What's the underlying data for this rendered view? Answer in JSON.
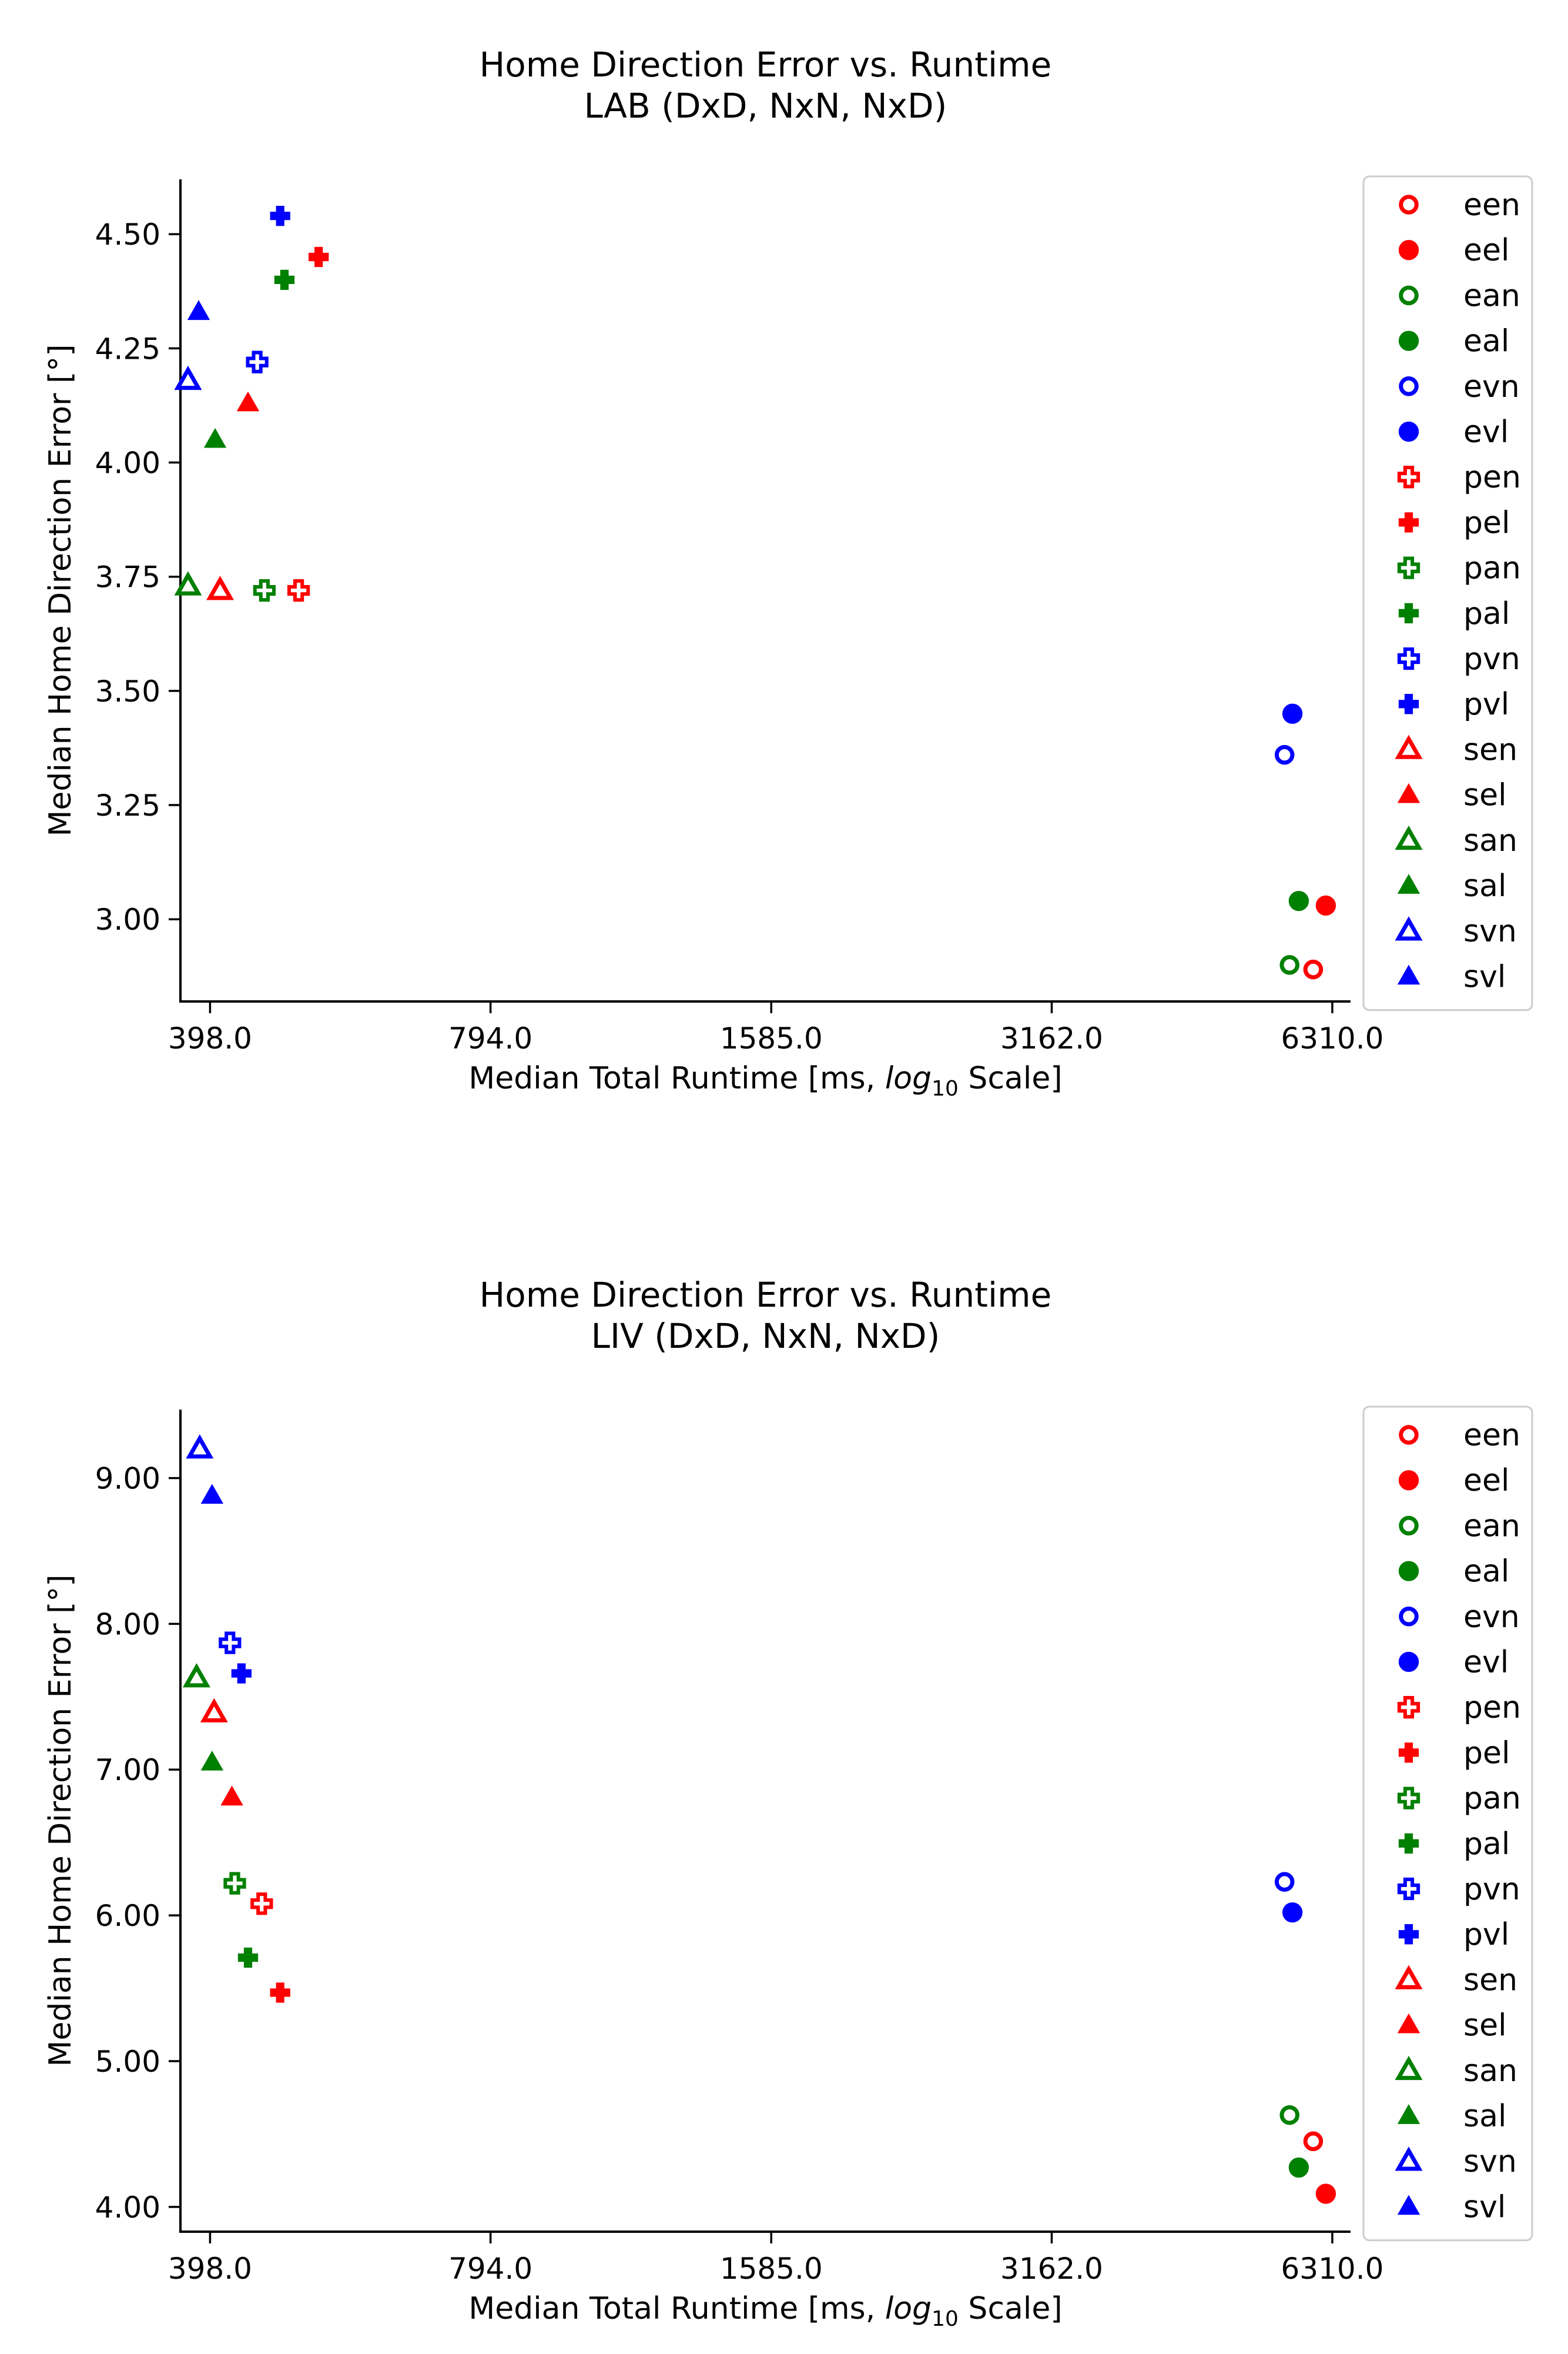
{
  "chart_data": [
    {
      "type": "scatter",
      "title": "Home Direction Error vs. Runtime",
      "subtitle": "LAB (DxD, NxN, NxD)",
      "xlabel": "Median Total Runtime [ms, log10 Scale]",
      "xlabel_parts": [
        "Median Total Runtime [ms, ",
        "log",
        "10",
        " Scale]"
      ],
      "ylabel": "Median Home Direction Error [°]",
      "xscale": "log10",
      "xlim": [
        370,
        6600
      ],
      "ylim": [
        2.82,
        4.62
      ],
      "xticks": [
        398,
        794,
        1585,
        3162,
        6310
      ],
      "xtick_labels": [
        "398.0",
        "794.0",
        "1585.0",
        "3162.0",
        "6310.0"
      ],
      "yticks": [
        3.0,
        3.25,
        3.5,
        3.75,
        4.0,
        4.25,
        4.5
      ],
      "ytick_labels": [
        "3.00",
        "3.25",
        "3.50",
        "3.75",
        "4.00",
        "4.25",
        "4.50"
      ],
      "grid": false,
      "legend_position": "right",
      "series": [
        {
          "name": "een",
          "color": "#ff0000",
          "marker": "circle",
          "filled": false,
          "x": 6020,
          "y": 2.89
        },
        {
          "name": "eel",
          "color": "#ff0000",
          "marker": "circle",
          "filled": true,
          "x": 6210,
          "y": 3.03
        },
        {
          "name": "ean",
          "color": "#008000",
          "marker": "circle",
          "filled": false,
          "x": 5680,
          "y": 2.9
        },
        {
          "name": "eal",
          "color": "#008000",
          "marker": "circle",
          "filled": true,
          "x": 5810,
          "y": 3.04
        },
        {
          "name": "evn",
          "color": "#0000ff",
          "marker": "circle",
          "filled": false,
          "x": 5610,
          "y": 3.36
        },
        {
          "name": "evl",
          "color": "#0000ff",
          "marker": "circle",
          "filled": true,
          "x": 5720,
          "y": 3.45
        },
        {
          "name": "pen",
          "color": "#ff0000",
          "marker": "plus",
          "filled": false,
          "x": 495,
          "y": 3.72
        },
        {
          "name": "pel",
          "color": "#ff0000",
          "marker": "plus",
          "filled": true,
          "x": 520,
          "y": 4.45
        },
        {
          "name": "pan",
          "color": "#008000",
          "marker": "plus",
          "filled": false,
          "x": 455,
          "y": 3.72
        },
        {
          "name": "pal",
          "color": "#008000",
          "marker": "plus",
          "filled": true,
          "x": 478,
          "y": 4.4
        },
        {
          "name": "pvn",
          "color": "#0000ff",
          "marker": "plus",
          "filled": false,
          "x": 447,
          "y": 4.22
        },
        {
          "name": "pvl",
          "color": "#0000ff",
          "marker": "plus",
          "filled": true,
          "x": 473,
          "y": 4.54
        },
        {
          "name": "sen",
          "color": "#ff0000",
          "marker": "triangle",
          "filled": false,
          "x": 408,
          "y": 3.72
        },
        {
          "name": "sel",
          "color": "#ff0000",
          "marker": "triangle",
          "filled": true,
          "x": 437,
          "y": 4.13
        },
        {
          "name": "san",
          "color": "#008000",
          "marker": "triangle",
          "filled": false,
          "x": 377,
          "y": 3.73
        },
        {
          "name": "sal",
          "color": "#008000",
          "marker": "triangle",
          "filled": true,
          "x": 403,
          "y": 4.05
        },
        {
          "name": "svn",
          "color": "#0000ff",
          "marker": "triangle",
          "filled": false,
          "x": 377,
          "y": 4.18
        },
        {
          "name": "svl",
          "color": "#0000ff",
          "marker": "triangle",
          "filled": true,
          "x": 387,
          "y": 4.33
        }
      ]
    },
    {
      "type": "scatter",
      "title": "Home Direction Error vs. Runtime",
      "subtitle": "LIV (DxD, NxN, NxD)",
      "xlabel": "Median Total Runtime [ms, log10 Scale]",
      "xlabel_parts": [
        "Median Total Runtime [ms, ",
        "log",
        "10",
        " Scale]"
      ],
      "ylabel": "Median Home Direction Error [°]",
      "xscale": "log10",
      "xlim": [
        370,
        6600
      ],
      "ylim": [
        3.83,
        9.47
      ],
      "xticks": [
        398,
        794,
        1585,
        3162,
        6310
      ],
      "xtick_labels": [
        "398.0",
        "794.0",
        "1585.0",
        "3162.0",
        "6310.0"
      ],
      "yticks": [
        4.0,
        5.0,
        6.0,
        7.0,
        8.0,
        9.0
      ],
      "ytick_labels": [
        "4.00",
        "5.00",
        "6.00",
        "7.00",
        "8.00",
        "9.00"
      ],
      "grid": false,
      "legend_position": "right",
      "series": [
        {
          "name": "een",
          "color": "#ff0000",
          "marker": "circle",
          "filled": false,
          "x": 6020,
          "y": 4.45
        },
        {
          "name": "eel",
          "color": "#ff0000",
          "marker": "circle",
          "filled": true,
          "x": 6210,
          "y": 4.09
        },
        {
          "name": "ean",
          "color": "#008000",
          "marker": "circle",
          "filled": false,
          "x": 5680,
          "y": 4.63
        },
        {
          "name": "eal",
          "color": "#008000",
          "marker": "circle",
          "filled": true,
          "x": 5810,
          "y": 4.27
        },
        {
          "name": "evn",
          "color": "#0000ff",
          "marker": "circle",
          "filled": false,
          "x": 5610,
          "y": 6.23
        },
        {
          "name": "evl",
          "color": "#0000ff",
          "marker": "circle",
          "filled": true,
          "x": 5720,
          "y": 6.02
        },
        {
          "name": "pen",
          "color": "#ff0000",
          "marker": "plus",
          "filled": false,
          "x": 452,
          "y": 6.08
        },
        {
          "name": "pel",
          "color": "#ff0000",
          "marker": "plus",
          "filled": true,
          "x": 473,
          "y": 5.47
        },
        {
          "name": "pan",
          "color": "#008000",
          "marker": "plus",
          "filled": false,
          "x": 423,
          "y": 6.22
        },
        {
          "name": "pal",
          "color": "#008000",
          "marker": "plus",
          "filled": true,
          "x": 437,
          "y": 5.71
        },
        {
          "name": "pvn",
          "color": "#0000ff",
          "marker": "plus",
          "filled": false,
          "x": 418,
          "y": 7.87
        },
        {
          "name": "pvl",
          "color": "#0000ff",
          "marker": "plus",
          "filled": true,
          "x": 430,
          "y": 7.66
        },
        {
          "name": "sen",
          "color": "#ff0000",
          "marker": "triangle",
          "filled": false,
          "x": 402,
          "y": 7.39
        },
        {
          "name": "sel",
          "color": "#ff0000",
          "marker": "triangle",
          "filled": true,
          "x": 420,
          "y": 6.81
        },
        {
          "name": "san",
          "color": "#008000",
          "marker": "triangle",
          "filled": false,
          "x": 385,
          "y": 7.63
        },
        {
          "name": "sal",
          "color": "#008000",
          "marker": "triangle",
          "filled": true,
          "x": 400,
          "y": 7.05
        },
        {
          "name": "svn",
          "color": "#0000ff",
          "marker": "triangle",
          "filled": false,
          "x": 388,
          "y": 9.2
        },
        {
          "name": "svl",
          "color": "#0000ff",
          "marker": "triangle",
          "filled": true,
          "x": 400,
          "y": 8.88
        }
      ]
    }
  ]
}
